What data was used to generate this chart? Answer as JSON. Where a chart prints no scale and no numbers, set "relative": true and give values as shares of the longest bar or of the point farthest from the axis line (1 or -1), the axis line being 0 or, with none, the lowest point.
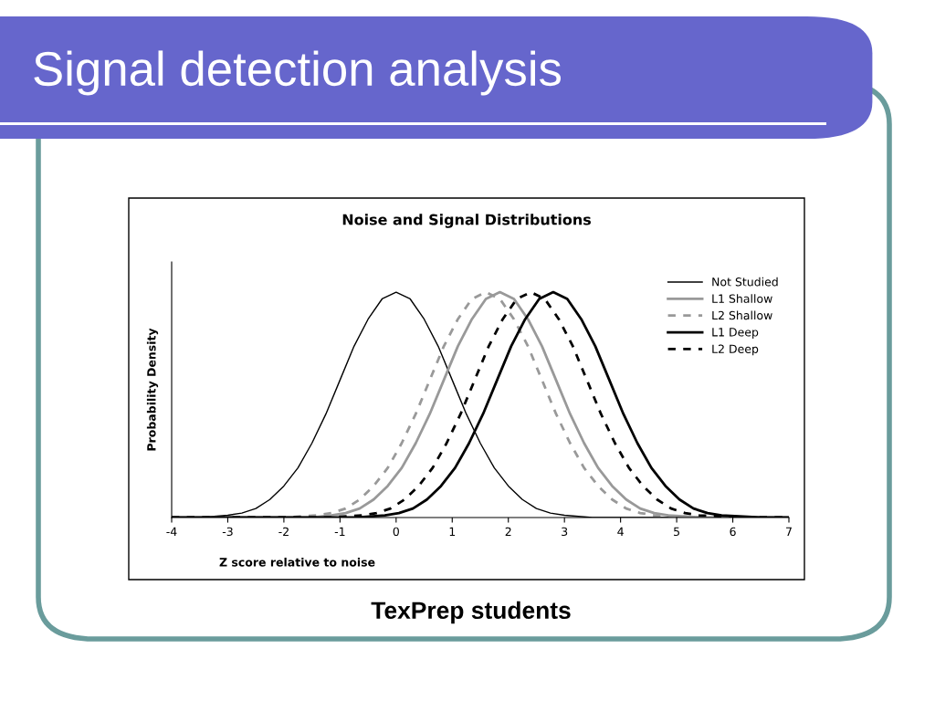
{
  "chart_data": {
    "type": "line",
    "title": "Noise and Signal Distributions",
    "xlabel": "Z score relative to noise",
    "ylabel": "Probability Density",
    "relative": true,
    "xlim": [
      -4,
      7
    ],
    "xticks": [
      -4,
      -3,
      -2,
      -1,
      0,
      1,
      2,
      3,
      4,
      5,
      6,
      7
    ],
    "legend": "top right",
    "grid": false,
    "annotations": [
      "Signal detection analysis",
      "TexPrep students"
    ],
    "series": [
      {
        "name": "Not Studied",
        "color": "#000000",
        "line_style": "solid",
        "x": [
          -4,
          -3.5,
          -3,
          -2.75,
          -2.5,
          -2.25,
          -2,
          -1.75,
          -1.5,
          -1.25,
          -1,
          -0.75,
          -0.5,
          -0.25,
          0,
          0.25,
          0.5,
          0.75,
          1,
          1.25,
          1.5,
          1.75,
          2,
          2.25,
          2.5,
          2.75,
          3,
          3.5,
          4,
          7
        ],
        "values": [
          0,
          0,
          0.01,
          0.02,
          0.04,
          0.08,
          0.14,
          0.22,
          0.33,
          0.46,
          0.61,
          0.76,
          0.88,
          0.97,
          1,
          0.97,
          0.88,
          0.76,
          0.61,
          0.46,
          0.33,
          0.22,
          0.14,
          0.08,
          0.04,
          0.02,
          0.01,
          0,
          0,
          0
        ]
      },
      {
        "name": "L1 Shallow",
        "color": "#999999",
        "line_style": "solid",
        "x": [
          -4,
          -1.5,
          -1.15,
          -0.9,
          -0.65,
          -0.4,
          -0.15,
          0.1,
          0.35,
          0.6,
          0.85,
          1.1,
          1.35,
          1.6,
          1.85,
          2.1,
          2.35,
          2.6,
          2.85,
          3.1,
          3.35,
          3.6,
          3.85,
          4.1,
          4.35,
          4.6,
          4.85,
          5.5,
          7
        ],
        "values": [
          0,
          0,
          0.01,
          0.02,
          0.04,
          0.08,
          0.14,
          0.22,
          0.33,
          0.46,
          0.61,
          0.76,
          0.88,
          0.97,
          1,
          0.97,
          0.88,
          0.76,
          0.61,
          0.46,
          0.33,
          0.22,
          0.14,
          0.08,
          0.04,
          0.02,
          0.01,
          0,
          0
        ]
      },
      {
        "name": "L2 Shallow",
        "color": "#999999",
        "line_style": "dashed",
        "x": [
          -4,
          -2,
          -1.4,
          -1.15,
          -0.9,
          -0.65,
          -0.4,
          -0.15,
          0.1,
          0.35,
          0.6,
          0.85,
          1.1,
          1.35,
          1.6,
          1.85,
          2.1,
          2.35,
          2.6,
          2.85,
          3.1,
          3.35,
          3.6,
          3.85,
          4.1,
          4.35,
          4.6,
          5.5,
          7
        ],
        "values": [
          0,
          0,
          0.01,
          0.02,
          0.04,
          0.08,
          0.14,
          0.22,
          0.33,
          0.46,
          0.61,
          0.76,
          0.88,
          0.97,
          1,
          0.97,
          0.88,
          0.76,
          0.61,
          0.46,
          0.33,
          0.22,
          0.14,
          0.08,
          0.04,
          0.02,
          0.01,
          0,
          0
        ]
      },
      {
        "name": "L1 Deep",
        "color": "#000000",
        "line_style": "solid",
        "x": [
          -4,
          -0.7,
          -0.2,
          0.05,
          0.3,
          0.55,
          0.8,
          1.05,
          1.3,
          1.55,
          1.8,
          2.05,
          2.3,
          2.55,
          2.8,
          3.05,
          3.3,
          3.55,
          3.8,
          4.05,
          4.3,
          4.55,
          4.8,
          5.05,
          5.3,
          5.55,
          5.8,
          6.5,
          7
        ],
        "values": [
          0,
          0,
          0.01,
          0.02,
          0.04,
          0.08,
          0.14,
          0.22,
          0.33,
          0.46,
          0.61,
          0.76,
          0.88,
          0.97,
          1,
          0.97,
          0.88,
          0.76,
          0.61,
          0.46,
          0.33,
          0.22,
          0.14,
          0.08,
          0.04,
          0.02,
          0.01,
          0,
          0
        ]
      },
      {
        "name": "L2 Deep",
        "color": "#000000",
        "line_style": "dashed",
        "x": [
          -4,
          -1.2,
          -0.6,
          -0.35,
          -0.1,
          0.15,
          0.4,
          0.65,
          0.9,
          1.15,
          1.4,
          1.65,
          1.9,
          2.15,
          2.4,
          2.65,
          2.9,
          3.15,
          3.4,
          3.65,
          3.9,
          4.15,
          4.4,
          4.65,
          4.9,
          5.15,
          5.4,
          6.2,
          7
        ],
        "values": [
          0,
          0,
          0.01,
          0.02,
          0.04,
          0.08,
          0.14,
          0.22,
          0.33,
          0.46,
          0.61,
          0.76,
          0.88,
          0.97,
          1,
          0.97,
          0.88,
          0.76,
          0.61,
          0.46,
          0.33,
          0.22,
          0.14,
          0.08,
          0.04,
          0.02,
          0.01,
          0,
          0
        ]
      }
    ]
  }
}
